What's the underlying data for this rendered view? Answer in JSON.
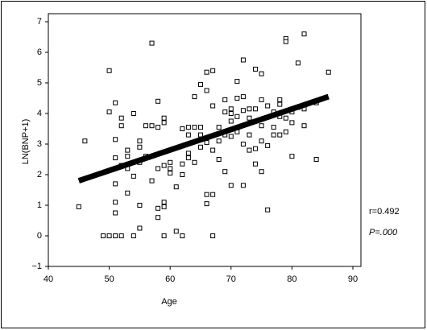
{
  "chart_data": {
    "type": "scatter",
    "x_label": "Age",
    "y_label": "LN(BNP+1)",
    "annotations": [
      "r=0.492",
      "P=.000"
    ],
    "xlim": [
      40,
      90
    ],
    "xticks": [
      40,
      50,
      60,
      70,
      80,
      90
    ],
    "ylim": [
      -1,
      7
    ],
    "yticks": [
      {
        "value": -1,
        "label": "−1"
      },
      0,
      1,
      2,
      3,
      4,
      5,
      6,
      7
    ],
    "color": "#000000",
    "series": [
      {
        "x": [
          45,
          46,
          49,
          50,
          50,
          50,
          51,
          51,
          51,
          51,
          51,
          51,
          51,
          52,
          52,
          52,
          52,
          53,
          53,
          53,
          53,
          54,
          54,
          54,
          55,
          55,
          55,
          55,
          55,
          56,
          56,
          57,
          57,
          57,
          58,
          58,
          58,
          58,
          58,
          59,
          59,
          59,
          59,
          59,
          59,
          60,
          60,
          60,
          61,
          61,
          62,
          62,
          62,
          62,
          63,
          63,
          63,
          63,
          64,
          64,
          64,
          65,
          65,
          65,
          65,
          66,
          66,
          66,
          66,
          66,
          67,
          67,
          67,
          67,
          67,
          68,
          68,
          68,
          69,
          69,
          69,
          69,
          70,
          70,
          70,
          70,
          70,
          71,
          71,
          71,
          71,
          72,
          72,
          72,
          72,
          72,
          73,
          73,
          73,
          73,
          74,
          74,
          74,
          74,
          75,
          75,
          75,
          75,
          75,
          76,
          76,
          76,
          77,
          77,
          77,
          78,
          78,
          78,
          78,
          79,
          79,
          79,
          79,
          80,
          80,
          80,
          81,
          81,
          82,
          82,
          82,
          84,
          84,
          86
        ],
        "values": [
          0.95,
          3.1,
          0,
          5.4,
          0,
          4.05,
          0,
          4.35,
          1.1,
          0.75,
          3.15,
          2.55,
          1.7,
          0,
          3.6,
          3.85,
          2.3,
          2.6,
          2.8,
          2.2,
          1.4,
          4,
          0,
          1.95,
          3.1,
          2.9,
          2.4,
          1,
          0.25,
          3.6,
          2.6,
          6.3,
          3.6,
          1.8,
          4.4,
          3.55,
          2.2,
          0.9,
          0.6,
          3.85,
          3.7,
          2.3,
          1.1,
          0.95,
          0,
          2.2,
          2.4,
          2.05,
          1.6,
          0.15,
          3.5,
          2.35,
          2.0,
          0,
          3.55,
          3.3,
          2.7,
          2.55,
          4.55,
          3.55,
          2.4,
          4.95,
          3.55,
          3.3,
          2.9,
          5.35,
          4.75,
          3.05,
          1.35,
          1.05,
          5.4,
          4.25,
          2.8,
          1.35,
          0,
          3.55,
          3.1,
          2.5,
          4.45,
          4.05,
          3.3,
          2.1,
          4.15,
          4.0,
          3.75,
          1.65,
          3.25,
          5.05,
          4.5,
          3.9,
          3.4,
          5.75,
          4.55,
          3.0,
          1.65,
          4.1,
          4.15,
          3.85,
          3.3,
          2.8,
          5.45,
          4.15,
          2.85,
          2.35,
          5.3,
          4.45,
          3.6,
          3.1,
          2.1,
          4.25,
          2.95,
          0.85,
          3.55,
          4.05,
          3.3,
          4.45,
          4.3,
          3.9,
          3.3,
          6.45,
          6.35,
          3.85,
          3.4,
          2.6,
          3.7,
          4.05,
          5.65,
          4.2,
          6.6,
          3.6,
          4.15,
          2.5,
          4.35,
          5.35
        ]
      }
    ],
    "fit_line": {
      "x": [
        45,
        86
      ],
      "values": [
        1.8,
        4.55
      ]
    }
  }
}
